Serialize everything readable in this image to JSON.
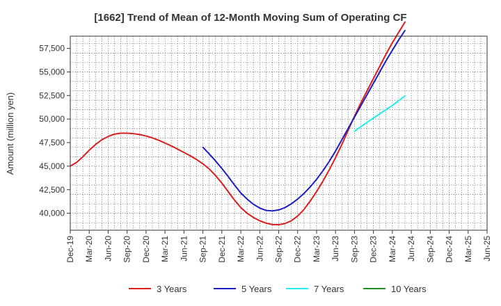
{
  "chart_data": {
    "type": "line",
    "title": "[1662]  Trend of Mean of 12-Month Moving Sum of Operating CF",
    "xlabel": "",
    "ylabel": "Amount (million yen)",
    "ylim": [
      38200,
      58800
    ],
    "yticks": [
      40000,
      42500,
      45000,
      47500,
      50000,
      52500,
      55000,
      57500
    ],
    "ytick_labels": [
      "40,000",
      "42,500",
      "45,000",
      "47,500",
      "50,000",
      "52,500",
      "55,000",
      "57,500"
    ],
    "xlim": [
      0,
      66
    ],
    "xticks": [
      0,
      3,
      6,
      9,
      12,
      15,
      18,
      21,
      24,
      27,
      30,
      33,
      36,
      39,
      42,
      45,
      48,
      51,
      54,
      57,
      60,
      63,
      66
    ],
    "xtick_labels": [
      "Dec-19",
      "Mar-20",
      "Jun-20",
      "Sep-20",
      "Dec-20",
      "Mar-21",
      "Jun-21",
      "Sep-21",
      "Dec-21",
      "Mar-22",
      "Jun-22",
      "Sep-22",
      "Dec-22",
      "Mar-23",
      "Jun-23",
      "Sep-23",
      "Dec-23",
      "Mar-24",
      "Jun-24",
      "Sep-24",
      "Dec-24",
      "Mar-25",
      "Jun-25"
    ],
    "legend_position": "bottom",
    "grid": true,
    "series": [
      {
        "name": "3 Years",
        "color": "#dd1c1c",
        "x": [
          0,
          1,
          2,
          3,
          4,
          5,
          6,
          7,
          8,
          9,
          10,
          11,
          12,
          13,
          14,
          15,
          16,
          17,
          18,
          19,
          20,
          21,
          22,
          23,
          24,
          25,
          26,
          27,
          28,
          29,
          30,
          31,
          32,
          33,
          34,
          35,
          36,
          37,
          38,
          39,
          40,
          41,
          42,
          43,
          44,
          45,
          46,
          47,
          48,
          49,
          50,
          51,
          52,
          53
        ],
        "values": [
          45000,
          45400,
          46000,
          46700,
          47300,
          47800,
          48150,
          48400,
          48500,
          48500,
          48450,
          48350,
          48200,
          48000,
          47750,
          47450,
          47150,
          46800,
          46450,
          46100,
          45700,
          45250,
          44700,
          44000,
          43200,
          42300,
          41400,
          40600,
          40000,
          39550,
          39200,
          38950,
          38800,
          38780,
          38900,
          39200,
          39700,
          40400,
          41300,
          42300,
          43400,
          44600,
          45900,
          47300,
          48800,
          50300,
          51700,
          53000,
          54300,
          55600,
          56900,
          58100,
          59200,
          60300
        ]
      },
      {
        "name": "5 Years",
        "color": "#1c1cc8",
        "x": [
          21,
          22,
          23,
          24,
          25,
          26,
          27,
          28,
          29,
          30,
          31,
          32,
          33,
          34,
          35,
          36,
          37,
          38,
          39,
          40,
          41,
          42,
          43,
          44,
          45,
          46,
          47,
          48,
          49,
          50,
          51,
          52,
          53
        ],
        "values": [
          47000,
          46300,
          45550,
          44750,
          43900,
          43000,
          42150,
          41500,
          40950,
          40550,
          40300,
          40250,
          40350,
          40600,
          41000,
          41500,
          42100,
          42800,
          43600,
          44500,
          45500,
          46600,
          47800,
          49000,
          50200,
          51400,
          52600,
          53800,
          55000,
          56200,
          57300,
          58400,
          59400
        ]
      },
      {
        "name": "7 Years",
        "color": "#22ecec",
        "x": [
          45,
          46,
          47,
          48,
          49,
          50,
          51,
          52,
          53
        ],
        "values": [
          48700,
          49200,
          49650,
          50100,
          50550,
          51000,
          51450,
          51950,
          52450
        ]
      },
      {
        "name": "10 Years",
        "color": "#228b22",
        "x": [],
        "values": []
      }
    ]
  }
}
